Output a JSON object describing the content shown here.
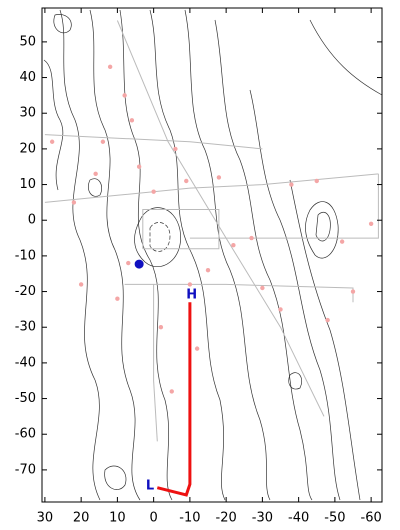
{
  "chart_data": {
    "type": "line",
    "xlim": [
      30.8,
      -63
    ],
    "ylim": [
      -79,
      59.5
    ],
    "xticks": [
      30,
      20,
      10,
      0,
      -10,
      -20,
      -30,
      -40,
      -50,
      -60
    ],
    "yticks": [
      -70,
      -60,
      -50,
      -40,
      -30,
      -20,
      -10,
      0,
      10,
      20,
      30,
      40,
      50
    ],
    "series": [
      {
        "color": "#bbbbbb",
        "x": [
          10,
          -4,
          -20,
          -35,
          -47
        ],
        "y": [
          56,
          22,
          -5,
          -30,
          -55
        ]
      },
      {
        "color": "#bbbbbb",
        "x": [
          30,
          10,
          -10,
          -30,
          -62
        ],
        "y": [
          5,
          7,
          9,
          10,
          13
        ]
      },
      {
        "color": "#bbbbbb",
        "x": [
          30,
          10,
          -10,
          -30
        ],
        "y": [
          24,
          23,
          22,
          20
        ]
      },
      {
        "color": "#bbbbbb",
        "x": [
          -10,
          -35,
          -62,
          -62
        ],
        "y": [
          -5,
          -5,
          -5,
          13
        ]
      },
      {
        "color": "#bbbbbb",
        "x": [
          8,
          -20,
          -55,
          -55
        ],
        "y": [
          -18,
          -18,
          -19,
          -23
        ]
      },
      {
        "color": "#bbbbbb",
        "x": [
          0,
          0,
          -1
        ],
        "y": [
          -18,
          -45,
          -62
        ]
      },
      {
        "color": "#bbbbbb",
        "x": [
          3,
          3,
          -18,
          -18,
          3
        ],
        "y": [
          -8,
          3,
          3,
          -8,
          -8
        ]
      },
      {
        "color": "#ee1111",
        "x": [
          -10,
          -10,
          -10,
          -10,
          -9,
          -5,
          -1
        ],
        "y": [
          -23,
          -40,
          -60,
          -74,
          -77,
          -76,
          -75
        ]
      }
    ],
    "points": {
      "color": "#f4a6a6",
      "x": [
        12,
        8,
        6,
        14,
        28,
        16,
        4,
        -6,
        0,
        -9,
        -18,
        -22,
        -27,
        -38,
        -45,
        -52,
        -60,
        -55,
        -30,
        -10,
        22,
        20,
        10,
        -2,
        -15,
        -35,
        -48,
        7,
        -5,
        -12
      ],
      "y": [
        43,
        35,
        28,
        22,
        22,
        13,
        15,
        20,
        8,
        11,
        12,
        -7,
        -5,
        10,
        11,
        -6,
        -1,
        -20,
        -19,
        -18,
        5,
        -18,
        -22,
        -30,
        -14,
        -25,
        -28,
        -12,
        -48,
        -36
      ]
    },
    "marker": {
      "x": 4,
      "y": -12.3,
      "color": "#1010c0"
    },
    "annotations": [
      {
        "text": "H",
        "x": -10.5,
        "y": -21,
        "color": "#1010c0"
      },
      {
        "text": "L",
        "x": 1,
        "y": -74.5,
        "color": "#1010c0"
      }
    ]
  }
}
